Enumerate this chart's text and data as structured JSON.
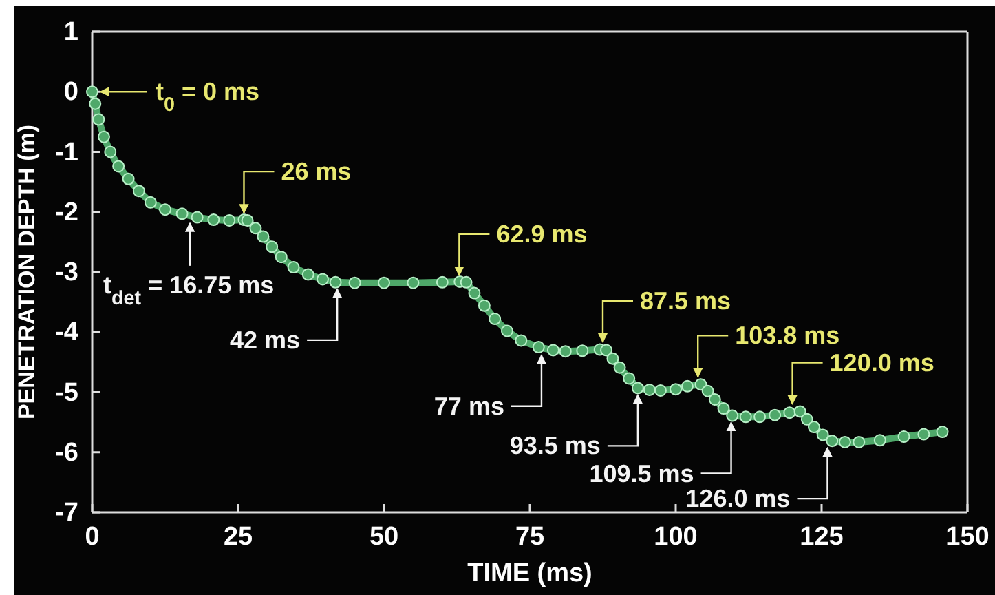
{
  "chart_data": {
    "type": "line",
    "xlabel": "TIME (ms)",
    "ylabel": "PENETRATION DEPTH (m)",
    "xlim": [
      0,
      150
    ],
    "xticks": [
      0,
      25,
      50,
      75,
      100,
      125,
      150
    ],
    "ylim": [
      -7,
      1
    ],
    "yticks": [
      -7,
      -6,
      -5,
      -4,
      -3,
      -2,
      -1,
      0,
      1
    ],
    "grid": false,
    "marker": "circle",
    "line_style": "solid",
    "series": [
      {
        "color": "#4fa86a",
        "x": [
          0,
          0.5,
          1.1,
          2,
          3.1,
          4.5,
          6.2,
          8,
          10,
          12.5,
          15.4,
          18,
          20.8,
          23.5,
          26,
          26.6,
          28,
          29.3,
          30.8,
          32.4,
          34.5,
          37,
          39.5,
          41.7,
          45,
          50,
          55,
          60,
          63,
          64.1,
          65.5,
          67.2,
          69,
          71.1,
          73.5,
          76.5,
          79,
          81.1,
          84,
          87,
          88.1,
          89.2,
          90.4,
          92,
          93.5,
          95.5,
          97.4,
          100,
          102,
          104.3,
          105.5,
          106.7,
          108.2,
          109.7,
          112,
          114.4,
          117,
          119.5,
          121.3,
          122.5,
          123.7,
          125.2,
          126.8,
          129,
          131.4,
          135,
          139.1,
          142.5,
          145.7
        ],
        "values": [
          0,
          -0.2,
          -0.46,
          -0.75,
          -1.0,
          -1.24,
          -1.45,
          -1.65,
          -1.84,
          -1.96,
          -2.03,
          -2.09,
          -2.13,
          -2.14,
          -2.13,
          -2.14,
          -2.27,
          -2.41,
          -2.58,
          -2.75,
          -2.92,
          -3.04,
          -3.12,
          -3.17,
          -3.18,
          -3.18,
          -3.18,
          -3.17,
          -3.16,
          -3.17,
          -3.35,
          -3.56,
          -3.78,
          -3.98,
          -4.14,
          -4.25,
          -4.3,
          -4.32,
          -4.31,
          -4.29,
          -4.3,
          -4.44,
          -4.59,
          -4.77,
          -4.93,
          -4.96,
          -4.97,
          -4.95,
          -4.9,
          -4.87,
          -4.98,
          -5.12,
          -5.27,
          -5.39,
          -5.41,
          -5.41,
          -5.38,
          -5.34,
          -5.32,
          -5.45,
          -5.58,
          -5.71,
          -5.81,
          -5.83,
          -5.83,
          -5.8,
          -5.74,
          -5.7,
          -5.66
        ]
      }
    ],
    "annotations": [
      {
        "text": "t$_{0}$ = 0 ms",
        "x": 0,
        "y": 0
      },
      {
        "text": "t$_{det}$ = 16.75 ms",
        "x": 16.75,
        "y": -2.07
      },
      {
        "text": "26 ms",
        "x": 26,
        "y": -2.13
      },
      {
        "text": "42 ms",
        "x": 42,
        "y": -3.17
      },
      {
        "text": "62.9 ms",
        "x": 62.9,
        "y": -3.17
      },
      {
        "text": "77 ms",
        "x": 77,
        "y": -4.27
      },
      {
        "text": "87.5 ms",
        "x": 87.5,
        "y": -4.28
      },
      {
        "text": "93.5 ms",
        "x": 93.5,
        "y": -4.93
      },
      {
        "text": "103.8 ms",
        "x": 103.8,
        "y": -4.86
      },
      {
        "text": "109.5 ms",
        "x": 109.5,
        "y": -5.39
      },
      {
        "text": "120.0 ms",
        "x": 120,
        "y": -5.31
      },
      {
        "text": "126.0 ms",
        "x": 126,
        "y": -5.81
      }
    ]
  }
}
